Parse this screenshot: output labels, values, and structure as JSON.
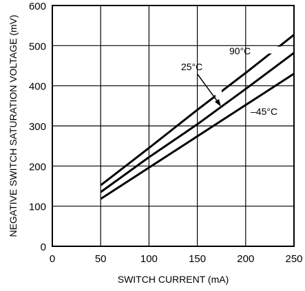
{
  "chart_data": {
    "type": "line",
    "title": "",
    "xlabel": "SWITCH CURRENT (mA)",
    "ylabel": "NEGATIVE SWITCH SATURATION VOLTAGE (mV)",
    "xlim": [
      0,
      250
    ],
    "ylim": [
      0,
      600
    ],
    "xticks": [
      0,
      50,
      100,
      150,
      200,
      250
    ],
    "yticks": [
      0,
      100,
      200,
      300,
      400,
      500,
      600
    ],
    "grid": true,
    "legend": "none",
    "series": [
      {
        "name": "90°C",
        "x": [
          50,
          100,
          150,
          200,
          250
        ],
        "y": [
          152,
          245,
          340,
          432,
          527
        ]
      },
      {
        "name": "25°C",
        "x": [
          50,
          100,
          150,
          200,
          250
        ],
        "y": [
          135,
          222,
          304,
          392,
          482
        ]
      },
      {
        "name": "–45°C",
        "x": [
          50,
          100,
          150,
          200,
          250
        ],
        "y": [
          118,
          196,
          274,
          352,
          430
        ]
      }
    ],
    "annotations": [
      {
        "text": "90°C",
        "series": "90°C"
      },
      {
        "text": "25°C",
        "series": "25°C"
      },
      {
        "text": "–45°C",
        "series": "–45°C"
      }
    ]
  }
}
